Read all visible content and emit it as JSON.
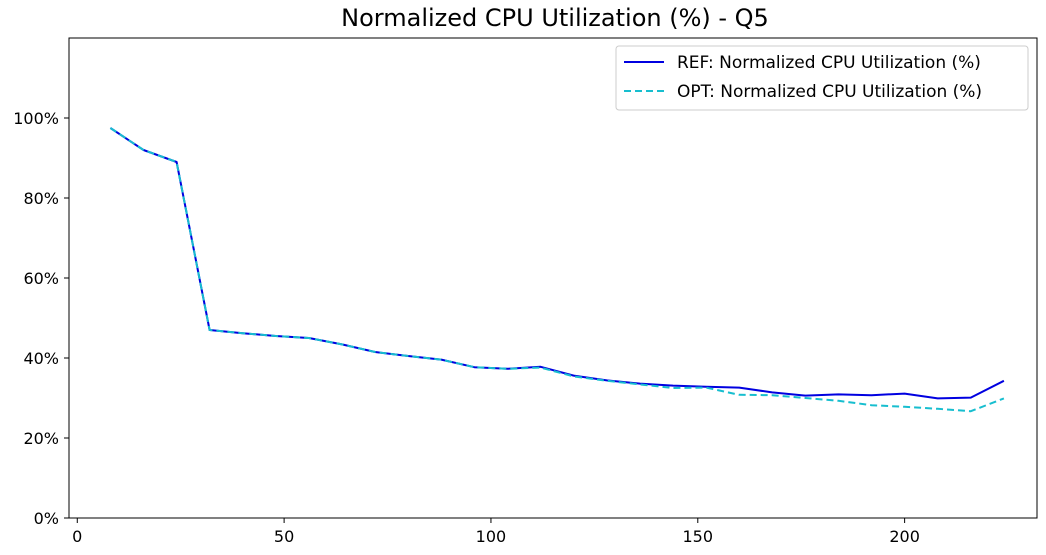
{
  "chart_data": {
    "type": "line",
    "title": "Normalized CPU Utilization (%) - Q5",
    "xlabel": "",
    "ylabel": "",
    "xlim": [
      -2,
      232
    ],
    "ylim": [
      0,
      120
    ],
    "x_ticks": [
      0,
      50,
      100,
      150,
      200
    ],
    "y_ticks": [
      0,
      20,
      40,
      60,
      80,
      100
    ],
    "y_tick_suffix": "%",
    "grid": false,
    "legend_position": "top-right",
    "series": [
      {
        "name": "REF: Normalized CPU Utilization (%)",
        "color": "#0000e0",
        "style": "solid",
        "x": [
          8,
          16,
          24,
          32,
          40,
          48,
          56,
          64,
          72,
          80,
          88,
          96,
          104,
          112,
          120,
          128,
          136,
          144,
          152,
          160,
          168,
          176,
          184,
          192,
          200,
          208,
          216,
          224
        ],
        "values": [
          97.5,
          92,
          89,
          47,
          46.2,
          45.5,
          45,
          43.4,
          41.5,
          40.5,
          39.6,
          37.7,
          37.3,
          37.8,
          35.6,
          34.4,
          33.6,
          33.1,
          32.8,
          32.6,
          31.4,
          30.6,
          30.9,
          30.7,
          31.1,
          29.9,
          30.1,
          34.3
        ]
      },
      {
        "name": "OPT: Normalized CPU Utilization (%)",
        "color": "#17becf",
        "style": "dashed",
        "x": [
          8,
          16,
          24,
          32,
          40,
          48,
          56,
          64,
          72,
          80,
          88,
          96,
          104,
          112,
          120,
          128,
          136,
          144,
          152,
          160,
          168,
          176,
          184,
          192,
          200,
          208,
          216,
          224
        ],
        "values": [
          97.5,
          92,
          89,
          47,
          46.2,
          45.5,
          45,
          43.4,
          41.5,
          40.5,
          39.6,
          37.7,
          37.3,
          37.6,
          35.4,
          34.3,
          33.4,
          32.5,
          32.6,
          30.8,
          30.7,
          30,
          29.3,
          28.2,
          27.8,
          27.3,
          26.7,
          29.9
        ]
      }
    ]
  }
}
